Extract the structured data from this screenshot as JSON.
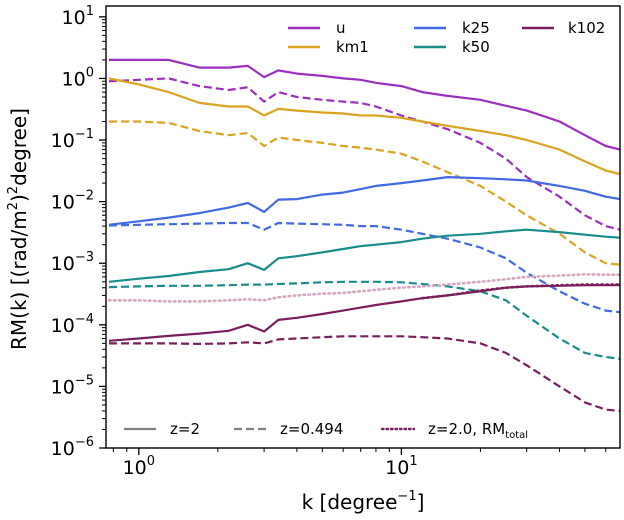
{
  "chart_data": {
    "type": "line",
    "xlabel": "k [degree",
    "xlabel_sup": "−1",
    "xlabel_close": "]",
    "ylabel_main": "RM(k) [(rad/m",
    "ylabel_sup": "2",
    "ylabel_end": ")",
    "ylabel_sup2": "2",
    "ylabel_tail": "degree]",
    "x_scale": "log",
    "y_scale": "log",
    "xlim": [
      0.75,
      68
    ],
    "ylim": [
      1e-06,
      15
    ],
    "x_ticks": [
      {
        "value": 1,
        "label": "10",
        "exp": "0"
      },
      {
        "value": 10,
        "label": "10",
        "exp": "1"
      }
    ],
    "y_ticks": [
      {
        "value": 1e-06,
        "label": "10",
        "exp": "−6"
      },
      {
        "value": 1e-05,
        "label": "10",
        "exp": "−5"
      },
      {
        "value": 0.0001,
        "label": "10",
        "exp": "−4"
      },
      {
        "value": 0.001,
        "label": "10",
        "exp": "−3"
      },
      {
        "value": 0.01,
        "label": "10",
        "exp": "−2"
      },
      {
        "value": 0.1,
        "label": "10",
        "exp": "−1"
      },
      {
        "value": 1,
        "label": "10",
        "exp": "0"
      },
      {
        "value": 10,
        "label": "10",
        "exp": "1"
      }
    ],
    "legend_colors": [
      {
        "name": "u",
        "color": "#9b2fbf"
      },
      {
        "name": "km1",
        "color": "#d9a521"
      },
      {
        "name": "k25",
        "color": "#4169e1"
      },
      {
        "name": "k50",
        "color": "#1a8c8c"
      },
      {
        "name": "k102",
        "color": "#7a1f5e"
      }
    ],
    "legend_styles": [
      {
        "name": "z=2",
        "style": "solid",
        "color": "#808080"
      },
      {
        "name": "z=0.494",
        "style": "dashed",
        "color": "#808080"
      },
      {
        "name": "z=2.0, RM",
        "sub": "total",
        "style": "dotted",
        "color": "#7a1f5e"
      }
    ],
    "series": [
      {
        "color": "#9b2fbf",
        "style": "solid",
        "points": [
          [
            0.77,
            2.0
          ],
          [
            1.0,
            2.0
          ],
          [
            1.3,
            2.0
          ],
          [
            1.7,
            1.5
          ],
          [
            2.2,
            1.5
          ],
          [
            2.6,
            1.6
          ],
          [
            3.0,
            1.05
          ],
          [
            3.4,
            1.35
          ],
          [
            4,
            1.2
          ],
          [
            5,
            1.1
          ],
          [
            6,
            1.0
          ],
          [
            7,
            0.95
          ],
          [
            8,
            0.85
          ],
          [
            10,
            0.75
          ],
          [
            12,
            0.6
          ],
          [
            15,
            0.52
          ],
          [
            20,
            0.45
          ],
          [
            25,
            0.36
          ],
          [
            30,
            0.3
          ],
          [
            40,
            0.2
          ],
          [
            50,
            0.12
          ],
          [
            60,
            0.08
          ],
          [
            68,
            0.07
          ]
        ]
      },
      {
        "color": "#9b2fbf",
        "style": "dashed",
        "points": [
          [
            0.77,
            0.9
          ],
          [
            1.0,
            0.95
          ],
          [
            1.3,
            1.0
          ],
          [
            1.7,
            0.75
          ],
          [
            2.2,
            0.65
          ],
          [
            2.6,
            0.72
          ],
          [
            3.0,
            0.42
          ],
          [
            3.4,
            0.6
          ],
          [
            4,
            0.5
          ],
          [
            5,
            0.45
          ],
          [
            6,
            0.42
          ],
          [
            7,
            0.4
          ],
          [
            8,
            0.35
          ],
          [
            10,
            0.25
          ],
          [
            12,
            0.2
          ],
          [
            15,
            0.15
          ],
          [
            20,
            0.09
          ],
          [
            25,
            0.05
          ],
          [
            30,
            0.025
          ],
          [
            40,
            0.012
          ],
          [
            50,
            0.006
          ],
          [
            60,
            0.004
          ],
          [
            68,
            0.0035
          ]
        ]
      },
      {
        "color": "#d9a521",
        "style": "solid",
        "points": [
          [
            0.77,
            1.0
          ],
          [
            1.0,
            0.8
          ],
          [
            1.3,
            0.6
          ],
          [
            1.7,
            0.4
          ],
          [
            2.2,
            0.35
          ],
          [
            2.6,
            0.35
          ],
          [
            3.0,
            0.25
          ],
          [
            3.4,
            0.32
          ],
          [
            4,
            0.3
          ],
          [
            5,
            0.28
          ],
          [
            6,
            0.27
          ],
          [
            7,
            0.25
          ],
          [
            8,
            0.25
          ],
          [
            10,
            0.23
          ],
          [
            12,
            0.2
          ],
          [
            15,
            0.17
          ],
          [
            20,
            0.14
          ],
          [
            25,
            0.12
          ],
          [
            30,
            0.1
          ],
          [
            40,
            0.07
          ],
          [
            50,
            0.045
          ],
          [
            60,
            0.032
          ],
          [
            68,
            0.028
          ]
        ]
      },
      {
        "color": "#d9a521",
        "style": "dashed",
        "points": [
          [
            0.77,
            0.2
          ],
          [
            1.0,
            0.2
          ],
          [
            1.3,
            0.19
          ],
          [
            1.7,
            0.14
          ],
          [
            2.2,
            0.12
          ],
          [
            2.6,
            0.13
          ],
          [
            3.0,
            0.08
          ],
          [
            3.4,
            0.11
          ],
          [
            4,
            0.1
          ],
          [
            5,
            0.09
          ],
          [
            6,
            0.08
          ],
          [
            7,
            0.075
          ],
          [
            8,
            0.07
          ],
          [
            10,
            0.06
          ],
          [
            12,
            0.045
          ],
          [
            15,
            0.03
          ],
          [
            20,
            0.018
          ],
          [
            25,
            0.01
          ],
          [
            30,
            0.006
          ],
          [
            40,
            0.003
          ],
          [
            50,
            0.0015
          ],
          [
            60,
            0.001
          ],
          [
            68,
            0.00095
          ]
        ]
      },
      {
        "color": "#4169e1",
        "style": "solid",
        "points": [
          [
            0.77,
            0.0042
          ],
          [
            1.0,
            0.0048
          ],
          [
            1.3,
            0.0055
          ],
          [
            1.7,
            0.0065
          ],
          [
            2.2,
            0.008
          ],
          [
            2.6,
            0.0095
          ],
          [
            3.0,
            0.0068
          ],
          [
            3.4,
            0.0108
          ],
          [
            4,
            0.011
          ],
          [
            5,
            0.013
          ],
          [
            6,
            0.014
          ],
          [
            7,
            0.016
          ],
          [
            8,
            0.018
          ],
          [
            10,
            0.02
          ],
          [
            12,
            0.022
          ],
          [
            15,
            0.025
          ],
          [
            20,
            0.024
          ],
          [
            25,
            0.023
          ],
          [
            30,
            0.022
          ],
          [
            40,
            0.018
          ],
          [
            50,
            0.015
          ],
          [
            60,
            0.012
          ],
          [
            68,
            0.011
          ]
        ]
      },
      {
        "color": "#4169e1",
        "style": "dashed",
        "points": [
          [
            0.77,
            0.0041
          ],
          [
            1.0,
            0.0042
          ],
          [
            1.3,
            0.0043
          ],
          [
            1.7,
            0.0044
          ],
          [
            2.2,
            0.0045
          ],
          [
            2.6,
            0.0045
          ],
          [
            3.0,
            0.0035
          ],
          [
            3.4,
            0.0045
          ],
          [
            4,
            0.0044
          ],
          [
            5,
            0.0043
          ],
          [
            6,
            0.0042
          ],
          [
            7,
            0.004
          ],
          [
            8,
            0.004
          ],
          [
            10,
            0.0035
          ],
          [
            12,
            0.003
          ],
          [
            15,
            0.0025
          ],
          [
            20,
            0.0018
          ],
          [
            25,
            0.0012
          ],
          [
            30,
            0.0007
          ],
          [
            40,
            0.00035
          ],
          [
            50,
            0.00022
          ],
          [
            60,
            0.00017
          ],
          [
            68,
            0.00016
          ]
        ]
      },
      {
        "color": "#1a8c8c",
        "style": "solid",
        "points": [
          [
            0.77,
            0.0005
          ],
          [
            1.0,
            0.00056
          ],
          [
            1.3,
            0.00062
          ],
          [
            1.7,
            0.00072
          ],
          [
            2.2,
            0.0008
          ],
          [
            2.6,
            0.001
          ],
          [
            3.0,
            0.00078
          ],
          [
            3.4,
            0.0012
          ],
          [
            4,
            0.0013
          ],
          [
            5,
            0.0015
          ],
          [
            6,
            0.0017
          ],
          [
            7,
            0.0019
          ],
          [
            8,
            0.002
          ],
          [
            10,
            0.0022
          ],
          [
            12,
            0.0025
          ],
          [
            15,
            0.0028
          ],
          [
            20,
            0.003
          ],
          [
            25,
            0.0033
          ],
          [
            30,
            0.0035
          ],
          [
            40,
            0.0032
          ],
          [
            50,
            0.0029
          ],
          [
            60,
            0.0027
          ],
          [
            68,
            0.0026
          ]
        ]
      },
      {
        "color": "#1a8c8c",
        "style": "dashed",
        "points": [
          [
            0.77,
            0.00041
          ],
          [
            1.0,
            0.00042
          ],
          [
            1.3,
            0.00043
          ],
          [
            1.7,
            0.00043
          ],
          [
            2.2,
            0.00044
          ],
          [
            2.6,
            0.00045
          ],
          [
            3.0,
            0.00045
          ],
          [
            3.4,
            0.00046
          ],
          [
            4,
            0.00047
          ],
          [
            5,
            0.00049
          ],
          [
            6,
            0.0005
          ],
          [
            7,
            0.0005
          ],
          [
            8,
            0.0005
          ],
          [
            10,
            0.00049
          ],
          [
            12,
            0.00046
          ],
          [
            15,
            0.00042
          ],
          [
            20,
            0.00035
          ],
          [
            25,
            0.00025
          ],
          [
            30,
            0.00014
          ],
          [
            40,
            6e-05
          ],
          [
            50,
            3.5e-05
          ],
          [
            60,
            3e-05
          ],
          [
            68,
            2.8e-05
          ]
        ]
      },
      {
        "color": "#d4a6c0",
        "style": "dotted",
        "points": [
          [
            0.77,
            0.00025
          ],
          [
            1.0,
            0.00025
          ],
          [
            1.3,
            0.00024
          ],
          [
            1.7,
            0.00024
          ],
          [
            2.2,
            0.00025
          ],
          [
            2.6,
            0.00026
          ],
          [
            3.0,
            0.00025
          ],
          [
            3.4,
            0.00028
          ],
          [
            4,
            0.0003
          ],
          [
            5,
            0.00032
          ],
          [
            6,
            0.00033
          ],
          [
            7,
            0.00035
          ],
          [
            8,
            0.00037
          ],
          [
            10,
            0.0004
          ],
          [
            12,
            0.00042
          ],
          [
            15,
            0.00045
          ],
          [
            20,
            0.0005
          ],
          [
            25,
            0.00055
          ],
          [
            30,
            0.0006
          ],
          [
            40,
            0.00063
          ],
          [
            50,
            0.00066
          ],
          [
            60,
            0.00065
          ],
          [
            68,
            0.00065
          ]
        ]
      },
      {
        "color": "#7a1f5e",
        "style": "solid",
        "points": [
          [
            0.77,
            5.5e-05
          ],
          [
            1.0,
            6e-05
          ],
          [
            1.3,
            6.6e-05
          ],
          [
            1.7,
            7.2e-05
          ],
          [
            2.2,
            8e-05
          ],
          [
            2.6,
            0.0001
          ],
          [
            3.0,
            7.8e-05
          ],
          [
            3.4,
            0.00012
          ],
          [
            4,
            0.00013
          ],
          [
            5,
            0.00015
          ],
          [
            6,
            0.00017
          ],
          [
            7,
            0.00019
          ],
          [
            8,
            0.00021
          ],
          [
            10,
            0.00024
          ],
          [
            12,
            0.00027
          ],
          [
            15,
            0.0003
          ],
          [
            20,
            0.00035
          ],
          [
            25,
            0.0004
          ],
          [
            30,
            0.00042
          ],
          [
            40,
            0.00043
          ],
          [
            50,
            0.00044
          ],
          [
            60,
            0.00044
          ],
          [
            68,
            0.00044
          ]
        ]
      },
      {
        "color": "#7a1f5e",
        "style": "dashed",
        "points": [
          [
            0.77,
            5e-05
          ],
          [
            1.0,
            5e-05
          ],
          [
            1.3,
            5e-05
          ],
          [
            1.7,
            4.9e-05
          ],
          [
            2.2,
            5e-05
          ],
          [
            2.6,
            5.2e-05
          ],
          [
            3.0,
            5e-05
          ],
          [
            3.4,
            5.8e-05
          ],
          [
            4,
            6e-05
          ],
          [
            5,
            6.3e-05
          ],
          [
            6,
            6.5e-05
          ],
          [
            7,
            6.5e-05
          ],
          [
            8,
            6.5e-05
          ],
          [
            10,
            6.5e-05
          ],
          [
            12,
            6.3e-05
          ],
          [
            15,
            6e-05
          ],
          [
            20,
            5e-05
          ],
          [
            25,
            3.5e-05
          ],
          [
            30,
            2.2e-05
          ],
          [
            40,
            1e-05
          ],
          [
            50,
            5.5e-06
          ],
          [
            60,
            4.2e-06
          ],
          [
            68,
            4e-06
          ]
        ]
      },
      {
        "color": "#7a1f5e",
        "style": "dotted",
        "points": [
          [
            12,
            0.00027
          ],
          [
            15,
            0.0003
          ],
          [
            20,
            0.00036
          ],
          [
            25,
            0.0004
          ],
          [
            30,
            0.00042
          ],
          [
            40,
            0.00044
          ],
          [
            50,
            0.00045
          ],
          [
            60,
            0.00045
          ],
          [
            68,
            0.00045
          ]
        ]
      }
    ]
  }
}
